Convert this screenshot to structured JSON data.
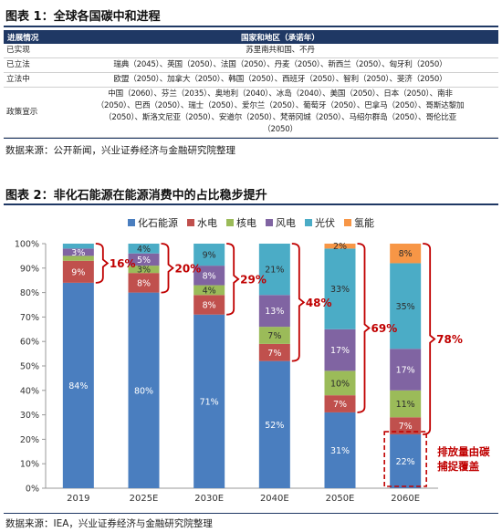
{
  "figure1": {
    "title": "图表 1：全球各国碳中和进程",
    "header": {
      "col1": "进展情况",
      "col2": "国家和地区（承诺年）"
    },
    "rows": [
      {
        "status": "已实现",
        "lines": [
          "苏里南共和国、不丹"
        ]
      },
      {
        "status": "已立法",
        "lines": [
          "瑞典（2045）、英国（2050）、法国（2050）、丹麦（2050）、新西兰（2050）、匈牙利（2050）"
        ]
      },
      {
        "status": "立法中",
        "lines": [
          "欧盟（2050）、加拿大（2050）、韩国（2050）、西班牙（2050）、智利（2050）、斐济（2050）"
        ]
      },
      {
        "status": "政策宣示",
        "lines": [
          "中国（2060）、芬兰（2035）、奥地利（2040）、冰岛（2040）、美国（2050）、日本（2050）、南非",
          "（2050）、巴西（2050）、瑞士（2050）、爱尔兰（2050）、葡萄牙（2050）、巴拿马（2050）、哥斯达黎加",
          "（2050）、斯洛文尼亚（2050）、安道尔（2050）、梵蒂冈城（2050）、马绍尔群岛（2050）、哥伦比亚",
          "（2050）"
        ]
      }
    ],
    "source": "数据来源：公开新闻，兴业证券经济与金融研究院整理"
  },
  "figure2": {
    "title": "图表 2：非化石能源在能源消费中的占比稳步提升",
    "source": "数据来源：IEA，兴业证券经济与金融研究院整理",
    "annotation": "排放量由碳捕捉覆盖"
  },
  "chart_data": {
    "type": "bar",
    "stacked": true,
    "categories": [
      "2019",
      "2025E",
      "2030E",
      "2040E",
      "2050E",
      "2060E"
    ],
    "ylim": [
      0,
      100
    ],
    "yticks": [
      "0%",
      "10%",
      "20%",
      "30%",
      "40%",
      "50%",
      "60%",
      "70%",
      "80%",
      "90%",
      "100%"
    ],
    "legend_position": "top",
    "series": [
      {
        "name": "化石能源",
        "color": "#4a7ebf",
        "values": [
          84,
          80,
          71,
          52,
          31,
          22
        ],
        "labels": [
          "84%",
          "80%",
          "71%",
          "52%",
          "31%",
          "22%"
        ]
      },
      {
        "name": "水电",
        "color": "#c0504d",
        "values": [
          9,
          8,
          8,
          7,
          7,
          7
        ],
        "labels": [
          "9%",
          "8%",
          "8%",
          "7%",
          "7%",
          "7%"
        ]
      },
      {
        "name": "核电",
        "color": "#9bbb59",
        "values": [
          2,
          3,
          4,
          7,
          10,
          11
        ],
        "labels": [
          "",
          "3%",
          "4%",
          "7%",
          "10%",
          "11%"
        ]
      },
      {
        "name": "风电",
        "color": "#8064a2",
        "values": [
          3,
          5,
          8,
          13,
          17,
          17
        ],
        "labels": [
          "3%",
          "5%",
          "8%",
          "13%",
          "17%",
          "17%"
        ]
      },
      {
        "name": "光伏",
        "color": "#4bacc6",
        "values": [
          2,
          4,
          9,
          21,
          33,
          35
        ],
        "labels": [
          "",
          "4%",
          "9%",
          "21%",
          "33%",
          "35%"
        ]
      },
      {
        "name": "氢能",
        "color": "#f79646",
        "values": [
          0,
          0,
          0,
          0,
          2,
          8
        ],
        "labels": [
          "",
          "",
          "",
          "",
          "2%",
          "8%"
        ]
      }
    ],
    "brace_labels": [
      "16%",
      "20%",
      "29%",
      "48%",
      "69%",
      "78%"
    ]
  }
}
